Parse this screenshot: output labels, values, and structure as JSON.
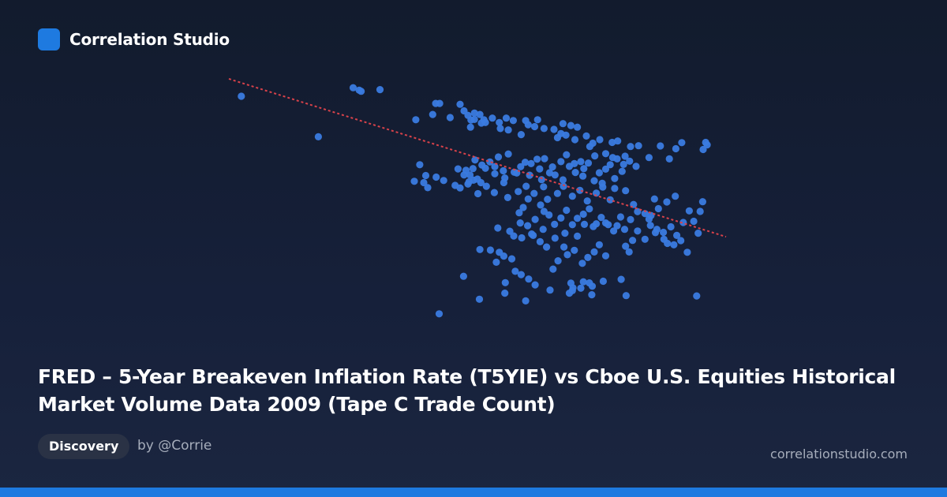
{
  "brand": {
    "name": "Correlation Studio",
    "logo_color": "#1e7ae0"
  },
  "title": "FRED – 5-Year Breakeven Inflation Rate (T5YIE) vs Cboe U.S. Equities Historical Market Volume Data 2009 (Tape C Trade Count)",
  "tag": "Discovery",
  "author": "by @Corrie",
  "site": "correlationstudio.com",
  "colors": {
    "point": "#3a7be0",
    "trend": "#d9424a",
    "accent": "#1e7ae0"
  },
  "chart_data": {
    "type": "scatter",
    "title": "",
    "xlabel": "",
    "ylabel": "",
    "grid": false,
    "xlim": [
      0,
      100
    ],
    "ylim": [
      0,
      100
    ],
    "trendline": {
      "x": [
        0,
        100
      ],
      "y": [
        94.3,
        37.1
      ]
    },
    "points": [
      [
        2.5,
        88
      ],
      [
        18,
        73.3
      ],
      [
        25,
        91.1
      ],
      [
        26.2,
        90.2
      ],
      [
        26.6,
        89.8
      ],
      [
        30.4,
        90.4
      ],
      [
        37.6,
        79.5
      ],
      [
        41,
        81.4
      ],
      [
        41.6,
        85.4
      ],
      [
        42.4,
        85.4
      ],
      [
        44.5,
        80.3
      ],
      [
        46.5,
        85.1
      ],
      [
        47.3,
        82.7
      ],
      [
        48.1,
        81.1
      ],
      [
        48.6,
        76.8
      ],
      [
        48.7,
        79.4
      ],
      [
        49.4,
        79.6
      ],
      [
        49.4,
        81.9
      ],
      [
        50.5,
        81.4
      ],
      [
        50.8,
        78.3
      ],
      [
        51.3,
        79.5
      ],
      [
        51.6,
        78.5
      ],
      [
        53,
        80.1
      ],
      [
        54.4,
        78.5
      ],
      [
        54.6,
        76.3
      ],
      [
        55.8,
        80.1
      ],
      [
        56.2,
        75.8
      ],
      [
        57.2,
        79.2
      ],
      [
        58.8,
        74.1
      ],
      [
        59.7,
        79.2
      ],
      [
        60.2,
        77.7
      ],
      [
        61.5,
        77
      ],
      [
        62.1,
        79.5
      ],
      [
        63.4,
        76.3
      ],
      [
        65.4,
        76
      ],
      [
        66.1,
        73
      ],
      [
        66.8,
        74.5
      ],
      [
        67.2,
        78.1
      ],
      [
        67.8,
        73.9
      ],
      [
        68.8,
        77.4
      ],
      [
        69.6,
        72.3
      ],
      [
        70.1,
        76.8
      ],
      [
        71.9,
        73.6
      ],
      [
        72.6,
        69.8
      ],
      [
        73.2,
        71
      ],
      [
        74.6,
        72.3
      ],
      [
        75.8,
        67.2
      ],
      [
        77.1,
        71.3
      ],
      [
        77.2,
        65.8
      ],
      [
        78.2,
        71.8
      ],
      [
        79.7,
        66.3
      ],
      [
        80.8,
        69.8
      ],
      [
        82.4,
        70.1
      ],
      [
        84.5,
        65.8
      ],
      [
        86.8,
        70
      ],
      [
        88.6,
        65.3
      ],
      [
        89.9,
        69
      ],
      [
        91.1,
        71.2
      ],
      [
        95.4,
        68.7
      ],
      [
        95.9,
        71.3
      ],
      [
        96.2,
        70.4
      ],
      [
        50,
        58
      ],
      [
        47.3,
        59.5
      ],
      [
        48.5,
        59.5
      ],
      [
        48.3,
        57
      ],
      [
        47.7,
        61.2
      ],
      [
        49.1,
        61.8
      ],
      [
        49.5,
        64.9
      ],
      [
        50.9,
        63.1
      ],
      [
        51.6,
        61.9
      ],
      [
        52.5,
        64.2
      ],
      [
        53.5,
        62.5
      ],
      [
        54.2,
        66
      ],
      [
        55.2,
        61
      ],
      [
        56.2,
        67.1
      ],
      [
        57.4,
        60.5
      ],
      [
        58.7,
        62.5
      ],
      [
        59.6,
        64.1
      ],
      [
        60.8,
        63.6
      ],
      [
        62,
        65.2
      ],
      [
        62.5,
        61.7
      ],
      [
        63.5,
        65.4
      ],
      [
        64.5,
        60.3
      ],
      [
        65.1,
        62.4
      ],
      [
        66.8,
        64.3
      ],
      [
        67.9,
        66.8
      ],
      [
        68.5,
        62.6
      ],
      [
        69.5,
        63.6
      ],
      [
        70.8,
        64.3
      ],
      [
        71.4,
        61.8
      ],
      [
        72.3,
        63.8
      ],
      [
        73.6,
        66.4
      ],
      [
        74.5,
        60.3
      ],
      [
        75.8,
        61.6
      ],
      [
        76.7,
        63.2
      ],
      [
        78.1,
        65.3
      ],
      [
        79.4,
        63.3
      ],
      [
        80.6,
        64.5
      ],
      [
        81.9,
        62.6
      ],
      [
        53.5,
        59.9
      ],
      [
        55.5,
        58.4
      ],
      [
        57.9,
        60.2
      ],
      [
        60.5,
        59.4
      ],
      [
        62.9,
        57.8
      ],
      [
        65.6,
        59.5
      ],
      [
        67.2,
        57.7
      ],
      [
        69.7,
        60.4
      ],
      [
        71.2,
        59.1
      ],
      [
        73.5,
        57.4
      ],
      [
        75.1,
        56.5
      ],
      [
        77.6,
        58.2
      ],
      [
        79.1,
        60.8
      ],
      [
        46.5,
        54.8
      ],
      [
        48.1,
        56.2
      ],
      [
        50.1,
        52.7
      ],
      [
        51.8,
        55.4
      ],
      [
        53.4,
        53.1
      ],
      [
        55.3,
        56.7
      ],
      [
        56.1,
        51.3
      ],
      [
        58.2,
        53.5
      ],
      [
        59.8,
        55.4
      ],
      [
        61.4,
        52.8
      ],
      [
        63.3,
        55.2
      ],
      [
        64.1,
        50.7
      ],
      [
        66.1,
        52.8
      ],
      [
        67.3,
        55.4
      ],
      [
        69.1,
        51.8
      ],
      [
        70.6,
        53.9
      ],
      [
        72.1,
        50.1
      ],
      [
        73.9,
        52.9
      ],
      [
        75.2,
        55.1
      ],
      [
        76.7,
        50.5
      ],
      [
        38.4,
        63.2
      ],
      [
        41.7,
        58.7
      ],
      [
        43.2,
        57.5
      ],
      [
        45.5,
        55.7
      ],
      [
        46.1,
        61.7
      ],
      [
        37.3,
        57.2
      ],
      [
        39.6,
        59.3
      ],
      [
        39.2,
        56.7
      ],
      [
        40,
        54.9
      ],
      [
        49.2,
        57.6
      ],
      [
        50.7,
        56.7
      ],
      [
        58.4,
        45.8
      ],
      [
        59.2,
        47.7
      ],
      [
        60.2,
        50.8
      ],
      [
        61.6,
        43.4
      ],
      [
        62.7,
        48.6
      ],
      [
        63.4,
        46.3
      ],
      [
        64.4,
        45
      ],
      [
        65.5,
        41.6
      ],
      [
        66.8,
        43.9
      ],
      [
        67.9,
        46.7
      ],
      [
        69.1,
        41.5
      ],
      [
        70.1,
        43.8
      ],
      [
        71.3,
        45.3
      ],
      [
        72.5,
        47.2
      ],
      [
        73.9,
        41.8
      ],
      [
        74.9,
        44.1
      ],
      [
        76.3,
        41.5
      ],
      [
        77.4,
        39.2
      ],
      [
        78.8,
        44.3
      ],
      [
        79.6,
        39.8
      ],
      [
        80.8,
        43.3
      ],
      [
        82.2,
        39.2
      ],
      [
        83.7,
        36.2
      ],
      [
        84.8,
        41.2
      ],
      [
        85.8,
        38.6
      ],
      [
        87.5,
        36.2
      ],
      [
        88.9,
        40.7
      ],
      [
        90.1,
        37.6
      ],
      [
        91.4,
        42.3
      ],
      [
        92.6,
        46.5
      ],
      [
        94.8,
        46.3
      ],
      [
        93.5,
        42.7
      ],
      [
        95.3,
        49.8
      ],
      [
        89.8,
        51.8
      ],
      [
        88.1,
        49.7
      ],
      [
        86.4,
        47.3
      ],
      [
        84.9,
        44.8
      ],
      [
        85.6,
        50.8
      ],
      [
        77.6,
        54.6
      ],
      [
        79.8,
        53.8
      ],
      [
        81.4,
        48.8
      ],
      [
        82.2,
        46.2
      ],
      [
        83.7,
        45.5
      ],
      [
        84.5,
        43.5
      ],
      [
        86.1,
        39.8
      ],
      [
        87.4,
        38.7
      ],
      [
        88.2,
        34.7
      ],
      [
        89.5,
        34.2
      ],
      [
        90.9,
        35.7
      ],
      [
        92.2,
        31.5
      ],
      [
        94.4,
        38.4
      ],
      [
        80.5,
        31.6
      ],
      [
        81.2,
        35.8
      ],
      [
        79.8,
        33.7
      ],
      [
        75.8,
        30.2
      ],
      [
        74.5,
        34.2
      ],
      [
        73.5,
        31.6
      ],
      [
        72.2,
        29.6
      ],
      [
        71.1,
        27.5
      ],
      [
        69.5,
        32.2
      ],
      [
        68.1,
        30.6
      ],
      [
        67.4,
        33.4
      ],
      [
        66.2,
        28.4
      ],
      [
        65.2,
        25.4
      ],
      [
        63.9,
        33.4
      ],
      [
        62.6,
        35.3
      ],
      [
        61.2,
        37.6
      ],
      [
        60.1,
        41.1
      ],
      [
        58.9,
        36.7
      ],
      [
        57.3,
        37.4
      ],
      [
        56.5,
        39.1
      ],
      [
        55.3,
        30.1
      ],
      [
        54.1,
        40.3
      ],
      [
        58.6,
        42.1
      ],
      [
        60.9,
        38.1
      ],
      [
        63.2,
        39.8
      ],
      [
        65.6,
        36.6
      ],
      [
        67.6,
        38.4
      ],
      [
        70.1,
        37.3
      ],
      [
        71.5,
        41.6
      ],
      [
        73.3,
        40.8
      ],
      [
        75.8,
        42.1
      ],
      [
        78.1,
        41.1
      ],
      [
        54.4,
        31.5
      ],
      [
        56.9,
        29.1
      ],
      [
        57.6,
        24.6
      ],
      [
        58.8,
        23.4
      ],
      [
        60.3,
        21.8
      ],
      [
        61.6,
        19.7
      ],
      [
        64.6,
        17.8
      ],
      [
        68.5,
        16.7
      ],
      [
        69.2,
        18.6
      ],
      [
        71.3,
        20.8
      ],
      [
        72.5,
        20.4
      ],
      [
        73.1,
        19.2
      ],
      [
        75.3,
        21
      ],
      [
        78.9,
        21.7
      ],
      [
        79.9,
        15.8
      ],
      [
        73,
        16.1
      ],
      [
        69.1,
        17.6
      ],
      [
        59.7,
        13.9
      ],
      [
        55.5,
        16.7
      ],
      [
        50.4,
        14.5
      ],
      [
        47.2,
        22.8
      ],
      [
        42.3,
        9.2
      ],
      [
        50.5,
        32.5
      ],
      [
        52.6,
        32.3
      ],
      [
        53.8,
        27.9
      ],
      [
        55.6,
        20.5
      ],
      [
        94.1,
        15.7
      ],
      [
        68.8,
        20.3
      ],
      [
        70.8,
        18.5
      ]
    ]
  }
}
